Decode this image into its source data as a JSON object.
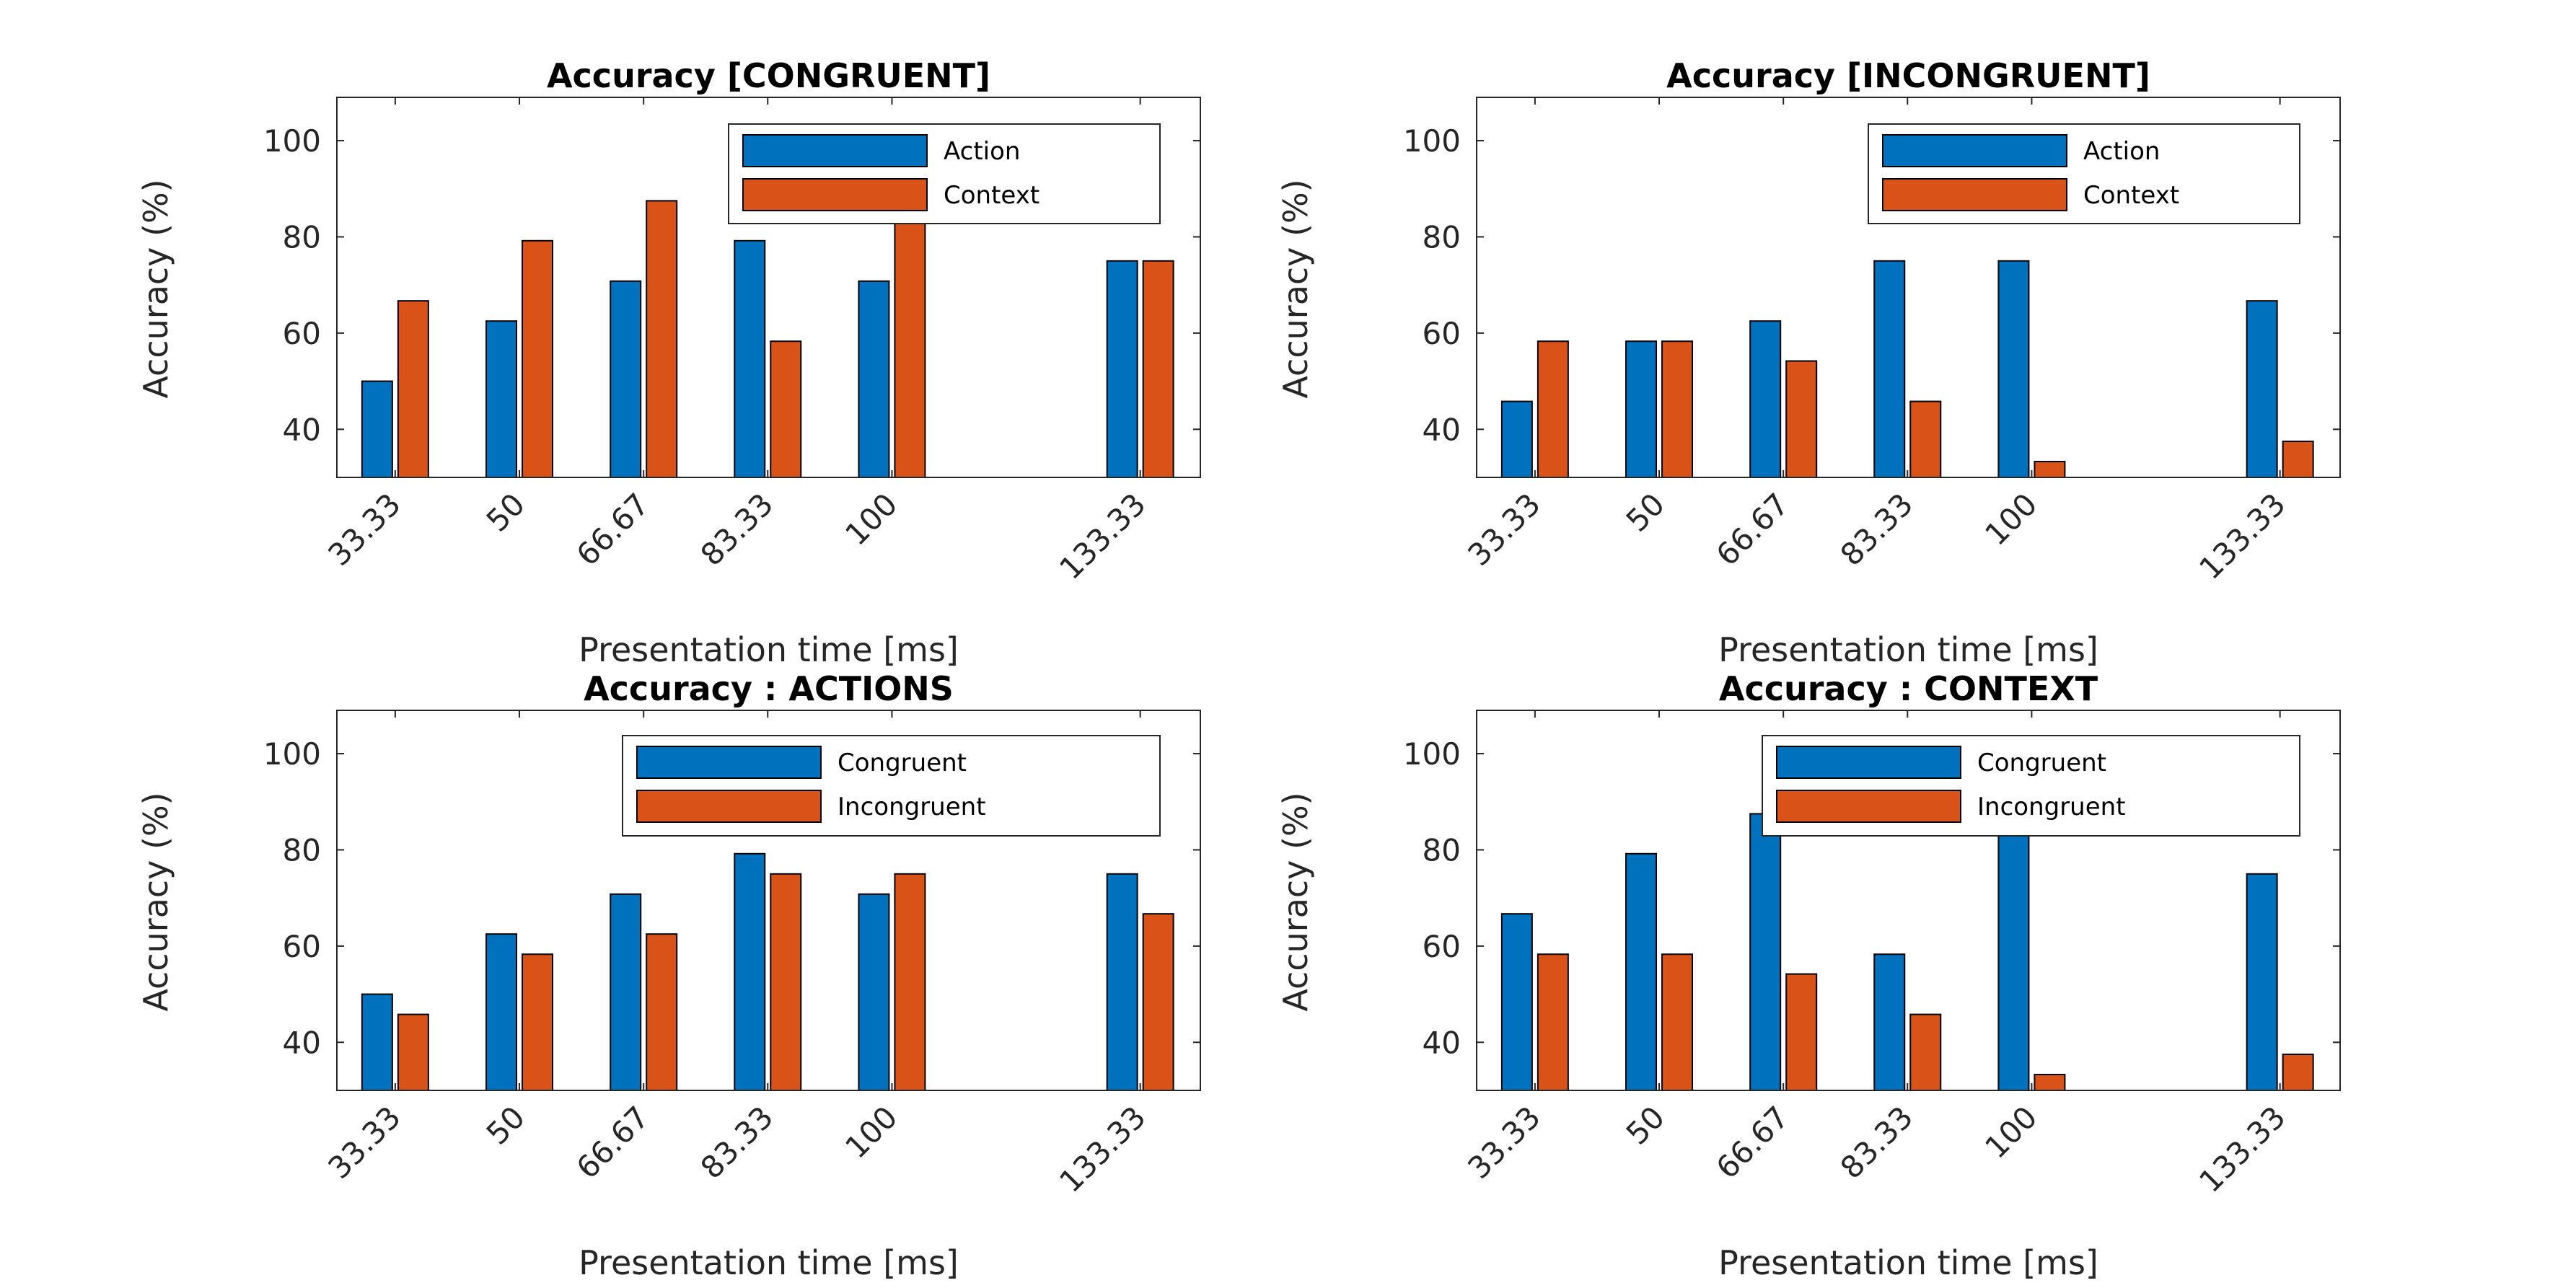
{
  "colors": {
    "blue": "#0072BD",
    "orange": "#D95319"
  },
  "chart_data": [
    {
      "type": "bar",
      "title": "Accuracy [CONGRUENT]",
      "xlabel": "Presentation time [ms]",
      "ylabel": "Accuracy (%)",
      "ylim": [
        30,
        109
      ],
      "yticks": [
        40,
        60,
        80,
        100
      ],
      "x": [
        33.33,
        50,
        66.67,
        83.33,
        100,
        133.33
      ],
      "categories": [
        "33.33",
        "50",
        "66.67",
        "83.33",
        "100",
        "133.33"
      ],
      "series": [
        {
          "name": "Action",
          "values": [
            50,
            62.5,
            70.8,
            79.2,
            70.8,
            75
          ]
        },
        {
          "name": "Context",
          "values": [
            66.7,
            79.2,
            87.5,
            58.3,
            87.5,
            75
          ]
        }
      ],
      "legend": "top-right",
      "grid": false
    },
    {
      "type": "bar",
      "title": "Accuracy [INCONGRUENT]",
      "xlabel": "Presentation time [ms]",
      "ylabel": "Accuracy (%)",
      "ylim": [
        30,
        109
      ],
      "yticks": [
        40,
        60,
        80,
        100
      ],
      "x": [
        33.33,
        50,
        66.67,
        83.33,
        100,
        133.33
      ],
      "categories": [
        "33.33",
        "50",
        "66.67",
        "83.33",
        "100",
        "133.33"
      ],
      "series": [
        {
          "name": "Action",
          "values": [
            45.8,
            58.3,
            62.5,
            75,
            75,
            66.7
          ]
        },
        {
          "name": "Context",
          "values": [
            58.3,
            58.3,
            54.2,
            45.8,
            33.3,
            37.5
          ]
        }
      ],
      "legend": "top-right",
      "grid": false
    },
    {
      "type": "bar",
      "title": "Accuracy : ACTIONS",
      "xlabel": "Presentation time [ms]",
      "ylabel": "Accuracy (%)",
      "ylim": [
        30,
        109
      ],
      "yticks": [
        40,
        60,
        80,
        100
      ],
      "x": [
        33.33,
        50,
        66.67,
        83.33,
        100,
        133.33
      ],
      "categories": [
        "33.33",
        "50",
        "66.67",
        "83.33",
        "100",
        "133.33"
      ],
      "series": [
        {
          "name": "Congruent",
          "values": [
            50,
            62.5,
            70.8,
            79.2,
            70.8,
            75
          ]
        },
        {
          "name": "Incongruent",
          "values": [
            45.8,
            58.3,
            62.5,
            75,
            75,
            66.7
          ]
        }
      ],
      "legend": "top-right",
      "grid": false
    },
    {
      "type": "bar",
      "title": "Accuracy : CONTEXT",
      "xlabel": "Presentation time [ms]",
      "ylabel": "Accuracy (%)",
      "ylim": [
        30,
        109
      ],
      "yticks": [
        40,
        60,
        80,
        100
      ],
      "x": [
        33.33,
        50,
        66.67,
        83.33,
        100,
        133.33
      ],
      "categories": [
        "33.33",
        "50",
        "66.67",
        "83.33",
        "100",
        "133.33"
      ],
      "series": [
        {
          "name": "Congruent",
          "values": [
            66.7,
            79.2,
            87.5,
            58.3,
            87.5,
            75
          ]
        },
        {
          "name": "Incongruent",
          "values": [
            58.3,
            58.3,
            54.2,
            45.8,
            33.3,
            37.5
          ]
        }
      ],
      "legend": "top-right",
      "grid": false
    }
  ]
}
